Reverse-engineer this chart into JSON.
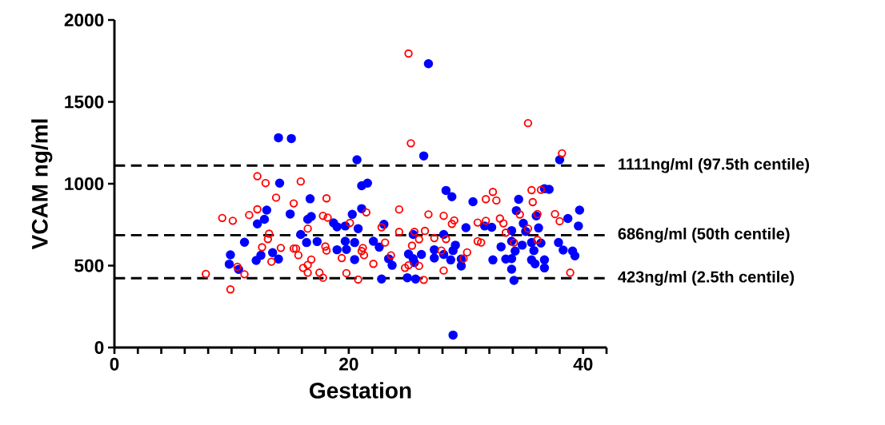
{
  "chart_data": {
    "type": "scatter",
    "xlabel": "Gestation",
    "ylabel": "VCAM ng/ml",
    "xlim": [
      0,
      42
    ],
    "ylim": [
      0,
      2000
    ],
    "xticks": [
      0,
      {
        "value": 2,
        "label": null
      },
      {
        "value": 4,
        "label": null
      },
      {
        "value": 6,
        "label": null
      },
      {
        "value": 8,
        "label": null
      },
      {
        "value": 10,
        "label": null
      },
      {
        "value": 12,
        "label": null
      },
      {
        "value": 14,
        "label": null
      },
      {
        "value": 16,
        "label": null
      },
      {
        "value": 18,
        "label": null
      },
      20,
      {
        "value": 22,
        "label": null
      },
      {
        "value": 24,
        "label": null
      },
      {
        "value": 26,
        "label": null
      },
      {
        "value": 28,
        "label": null
      },
      {
        "value": 30,
        "label": null
      },
      {
        "value": 32,
        "label": null
      },
      {
        "value": 34,
        "label": null
      },
      {
        "value": 36,
        "label": null
      },
      {
        "value": 38,
        "label": null
      },
      40,
      {
        "value": 42,
        "label": null
      }
    ],
    "yticks": [
      0,
      500,
      1000,
      1500,
      2000
    ],
    "marker": "circle",
    "series": [
      {
        "color": "#0000ff",
        "x": [
          14.0,
          14.1,
          13.0,
          12.8,
          12.2,
          11.1,
          9.9,
          9.8,
          10.6,
          12.1,
          12.5,
          13.5,
          14.0,
          15.1,
          20.7,
          26.4,
          21.1,
          21.6,
          16.7,
          15.0,
          16.5,
          16.8,
          20.3,
          21.1,
          18.7,
          19.0,
          19.7,
          20.8,
          23.0,
          15.9,
          16.4,
          17.3,
          19.7,
          20.5,
          22.1,
          22.6,
          19.0,
          19.8,
          20.5,
          23.4,
          23.7,
          22.8,
          25.0,
          25.7,
          25.1,
          25.5,
          25.6,
          26.2,
          27.3,
          27.3,
          28.1,
          28.1,
          28.3,
          25.5,
          28.8,
          30.6,
          36.7,
          37.1,
          34.5,
          34.3,
          36.0,
          39.7,
          38.7,
          39.6,
          30.0,
          31.6,
          32.2,
          34.9,
          36.2,
          33.9,
          35.1,
          33.9,
          33.0,
          34.8,
          34.2,
          35.6,
          36.4,
          35.8,
          37.9,
          38.3,
          39.1,
          39.3,
          29.1,
          28.9,
          28.7,
          29.6,
          29.6,
          32.3,
          33.4,
          33.9,
          33.9,
          35.6,
          35.9,
          36.7,
          36.7,
          34.1,
          28.9,
          38.0,
          26.8
        ],
        "values": [
          1281,
          1004,
          839,
          783,
          755,
          643,
          566,
          509,
          477,
          532,
          563,
          579,
          540,
          1276,
          1146,
          1170,
          988,
          1004,
          908,
          815,
          783,
          800,
          813,
          848,
          761,
          737,
          742,
          726,
          752,
          690,
          641,
          647,
          649,
          641,
          649,
          613,
          597,
          599,
          537,
          542,
          502,
          418,
          426,
          418,
          571,
          543,
          519,
          568,
          597,
          546,
          690,
          568,
          959,
          690,
          921,
          890,
          970,
          966,
          905,
          836,
          804,
          839,
          788,
          742,
          732,
          742,
          734,
          758,
          730,
          714,
          709,
          649,
          615,
          625,
          589,
          641,
          638,
          592,
          641,
          595,
          589,
          560,
          625,
          592,
          535,
          540,
          498,
          535,
          540,
          543,
          478,
          535,
          511,
          535,
          486,
          410,
          76,
          1146,
          1733
        ]
      },
      {
        "color": "#ff0000",
        "x": [
          12.2,
          12.9,
          13.8,
          12.2,
          11.5,
          9.2,
          10.1,
          13.2,
          13.1,
          12.6,
          13.4,
          10.5,
          11.1,
          7.8,
          9.9,
          14.2,
          15.9,
          15.3,
          18.1,
          17.8,
          18.2,
          20.1,
          21.5,
          24.3,
          26.8,
          28.1,
          16.5,
          22.8,
          24.3,
          25.6,
          26.5,
          27.3,
          26.0,
          25.4,
          23.1,
          15.3,
          15.5,
          15.7,
          18.0,
          18.1,
          21.2,
          21.1,
          21.3,
          19.4,
          16.8,
          16.5,
          16.1,
          16.5,
          17.5,
          17.8,
          19.8,
          20.8,
          22.1,
          23.6,
          24.8,
          25.1,
          26.0,
          26.4,
          28.1,
          27.9,
          25.3,
          35.3,
          38.2,
          32.3,
          31.7,
          32.6,
          35.6,
          36.4,
          35.7,
          29.0,
          28.8,
          31.0,
          31.7,
          32.9,
          33.2,
          34.6,
          36.1,
          37.6,
          38.0,
          33.4,
          35.3,
          28.3,
          31.0,
          31.3,
          34.1,
          36.1,
          30.1,
          29.8,
          38.9,
          25.1
        ],
        "values": [
          1046,
          1004,
          915,
          844,
          809,
          791,
          774,
          695,
          662,
          612,
          524,
          493,
          447,
          449,
          355,
          608,
          1014,
          880,
          911,
          804,
          793,
          761,
          825,
          843,
          813,
          804,
          726,
          734,
          706,
          706,
          712,
          668,
          661,
          622,
          641,
          604,
          604,
          564,
          617,
          592,
          608,
          589,
          564,
          546,
          537,
          504,
          486,
          457,
          457,
          426,
          454,
          415,
          511,
          563,
          486,
          502,
          498,
          413,
          470,
          592,
          1247,
          1370,
          1186,
          950,
          906,
          898,
          961,
          963,
          888,
          776,
          755,
          763,
          774,
          788,
          758,
          812,
          815,
          815,
          771,
          701,
          726,
          662,
          649,
          641,
          641,
          657,
          581,
          543,
          457,
          1795
        ]
      }
    ],
    "ref_lines": [
      {
        "axis": "y",
        "value": 1111,
        "label": "1111ng/ml (97.5th centile)",
        "color": "#000000",
        "line_style": "dashed"
      },
      {
        "axis": "y",
        "value": 686,
        "label": "686ng/ml (50th centile)",
        "color": "#000000",
        "line_style": "dashed"
      },
      {
        "axis": "y",
        "value": 423,
        "label": "423ng/ml (2.5th centile)",
        "color": "#000000",
        "line_style": "dashed"
      }
    ]
  }
}
